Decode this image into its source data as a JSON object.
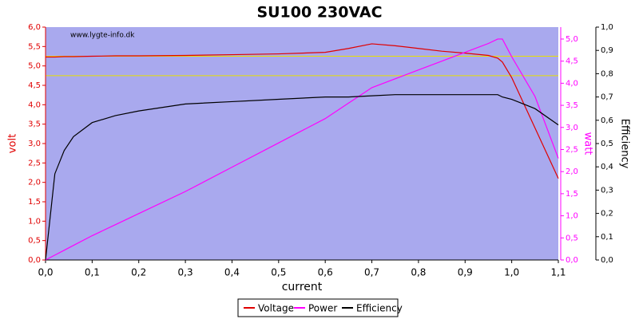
{
  "chart_data": {
    "type": "line",
    "title": "SU100 230VAC",
    "watermark": "www.lygte-info.dk",
    "xlabel": "current",
    "ylabel": "volt",
    "y2label": "watt",
    "y3label": "Efficiency",
    "x": [
      0,
      0.02,
      0.04,
      0.06,
      0.1,
      0.15,
      0.2,
      0.3,
      0.4,
      0.5,
      0.6,
      0.65,
      0.7,
      0.75,
      0.8,
      0.85,
      0.9,
      0.95,
      0.97,
      0.98,
      1.0,
      1.05,
      1.1
    ],
    "series": [
      {
        "name": "Voltage",
        "color": "#e00000",
        "axis": "y",
        "values": [
          5.23,
          5.23,
          5.24,
          5.24,
          5.25,
          5.26,
          5.26,
          5.27,
          5.29,
          5.31,
          5.35,
          5.45,
          5.57,
          5.52,
          5.45,
          5.38,
          5.33,
          5.27,
          5.2,
          5.1,
          4.7,
          3.4,
          2.1
        ]
      },
      {
        "name": "Power",
        "color": "#ff00ff",
        "axis": "y2",
        "values": [
          0,
          0.11,
          0.22,
          0.33,
          0.55,
          0.8,
          1.05,
          1.55,
          2.1,
          2.65,
          3.2,
          3.55,
          3.9,
          4.1,
          4.3,
          4.5,
          4.7,
          4.9,
          5.0,
          5.0,
          4.6,
          3.7,
          2.3
        ]
      },
      {
        "name": "Efficiency",
        "color": "#000000",
        "axis": "y3",
        "values": [
          0,
          0.37,
          0.47,
          0.53,
          0.59,
          0.62,
          0.64,
          0.67,
          0.68,
          0.69,
          0.7,
          0.7,
          0.705,
          0.71,
          0.71,
          0.71,
          0.71,
          0.71,
          0.71,
          0.7,
          0.69,
          0.65,
          0.58
        ]
      }
    ],
    "reference_lines": [
      5.25,
      4.75
    ],
    "reference_color": "#e8e000",
    "xlim": [
      0,
      1.1
    ],
    "xticks": [
      {
        "value": 0,
        "label": "0,0"
      },
      {
        "value": 0.1,
        "label": "0,1"
      },
      {
        "value": 0.2,
        "label": "0,2"
      },
      {
        "value": 0.3,
        "label": "0,3"
      },
      {
        "value": 0.4,
        "label": "0,4"
      },
      {
        "value": 0.5,
        "label": "0,5"
      },
      {
        "value": 0.6,
        "label": "0,6"
      },
      {
        "value": 0.7,
        "label": "0,7"
      },
      {
        "value": 0.8,
        "label": "0,8"
      },
      {
        "value": 0.9,
        "label": "0,9"
      },
      {
        "value": 1.0,
        "label": "1,0"
      },
      {
        "value": 1.1,
        "label": "1,1"
      }
    ],
    "ylim": [
      0,
      6
    ],
    "yticks": [
      {
        "value": 0,
        "label": "0,0"
      },
      {
        "value": 0.5,
        "label": "0,5"
      },
      {
        "value": 1,
        "label": "1,0"
      },
      {
        "value": 1.5,
        "label": "1,5"
      },
      {
        "value": 2,
        "label": "2,0"
      },
      {
        "value": 2.5,
        "label": "2,5"
      },
      {
        "value": 3,
        "label": "3,0"
      },
      {
        "value": 3.5,
        "label": "3,5"
      },
      {
        "value": 4,
        "label": "4,0"
      },
      {
        "value": 4.5,
        "label": "4,5"
      },
      {
        "value": 5,
        "label": "5,0"
      },
      {
        "value": 5.5,
        "label": "5,5"
      },
      {
        "value": 6,
        "label": "6,0"
      }
    ],
    "y2lim": [
      0,
      5.27
    ],
    "y2ticks": [
      {
        "value": 0,
        "label": "0,0"
      },
      {
        "value": 0.5,
        "label": "0,5"
      },
      {
        "value": 1,
        "label": "1,0"
      },
      {
        "value": 1.5,
        "label": "1,5"
      },
      {
        "value": 2,
        "label": "2,0"
      },
      {
        "value": 2.5,
        "label": "2,5"
      },
      {
        "value": 3,
        "label": "3,0"
      },
      {
        "value": 3.5,
        "label": "3,5"
      },
      {
        "value": 4,
        "label": "4,0"
      },
      {
        "value": 4.5,
        "label": "4,5"
      },
      {
        "value": 5,
        "label": "5,0"
      }
    ],
    "y3lim": [
      0,
      1
    ],
    "y3ticks": [
      {
        "value": 0,
        "label": "0,0"
      },
      {
        "value": 0.1,
        "label": "0,1"
      },
      {
        "value": 0.2,
        "label": "0,2"
      },
      {
        "value": 0.3,
        "label": "0,3"
      },
      {
        "value": 0.4,
        "label": "0,4"
      },
      {
        "value": 0.5,
        "label": "0,5"
      },
      {
        "value": 0.6,
        "label": "0,6"
      },
      {
        "value": 0.7,
        "label": "0,7"
      },
      {
        "value": 0.8,
        "label": "0,8"
      },
      {
        "value": 0.9,
        "label": "0,9"
      },
      {
        "value": 1,
        "label": "1,0"
      }
    ],
    "legend": "bottom"
  }
}
